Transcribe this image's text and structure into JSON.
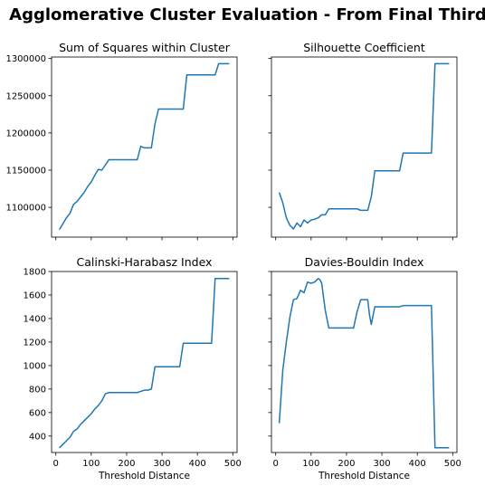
{
  "figure": {
    "suptitle": "Agglomerative Cluster Evaluation - From Final Third"
  },
  "chart_data": [
    {
      "type": "line",
      "title": "Sum of Squares within Cluster",
      "xlabel": "",
      "ylabel": "",
      "xlim": [
        -12,
        512
      ],
      "ylim": [
        1060000,
        1302000
      ],
      "xticks": [
        0,
        100,
        200,
        300,
        400,
        500
      ],
      "show_xticklabels": false,
      "yticks": [
        1100000,
        1150000,
        1200000,
        1250000,
        1300000
      ],
      "yticklabels": [
        "1100000",
        "1150000",
        "1200000",
        "1250000",
        "1300000"
      ],
      "x": [
        10,
        20,
        30,
        40,
        50,
        60,
        70,
        80,
        90,
        100,
        110,
        120,
        130,
        140,
        150,
        160,
        170,
        180,
        190,
        200,
        210,
        220,
        230,
        240,
        250,
        260,
        270,
        280,
        290,
        300,
        310,
        320,
        330,
        340,
        350,
        360,
        370,
        380,
        390,
        400,
        410,
        420,
        430,
        440,
        450,
        460,
        470,
        480,
        490
      ],
      "y": [
        1070000,
        1078000,
        1086000,
        1092000,
        1104000,
        1108000,
        1114000,
        1120000,
        1128000,
        1134000,
        1143000,
        1151000,
        1150000,
        1157000,
        1164000,
        1164000,
        1164000,
        1164000,
        1164000,
        1164000,
        1164000,
        1164000,
        1164000,
        1182000,
        1180000,
        1180000,
        1180000,
        1212000,
        1232000,
        1232000,
        1232000,
        1232000,
        1232000,
        1232000,
        1232000,
        1232000,
        1278000,
        1278000,
        1278000,
        1278000,
        1278000,
        1278000,
        1278000,
        1278000,
        1278000,
        1293000,
        1293000,
        1293000,
        1293000
      ]
    },
    {
      "type": "line",
      "title": "Silhouette Coefficient",
      "xlabel": "",
      "ylabel": "",
      "xlim": [
        -12,
        512
      ],
      "ylim": [
        1060000,
        1302000
      ],
      "xticks": [
        0,
        100,
        200,
        300,
        400,
        500
      ],
      "show_xticklabels": false,
      "yticks": [
        1100000,
        1150000,
        1200000,
        1250000,
        1300000
      ],
      "show_yticklabels": false,
      "x": [
        10,
        20,
        30,
        40,
        50,
        60,
        70,
        80,
        90,
        100,
        110,
        120,
        130,
        140,
        150,
        160,
        170,
        180,
        190,
        200,
        210,
        220,
        230,
        240,
        250,
        260,
        270,
        280,
        290,
        300,
        310,
        320,
        330,
        340,
        350,
        360,
        370,
        380,
        390,
        400,
        410,
        420,
        430,
        440,
        450,
        460,
        470,
        480,
        490
      ],
      "y": [
        1120000,
        1106000,
        1086000,
        1076000,
        1071000,
        1079000,
        1074000,
        1083000,
        1079000,
        1083000,
        1084000,
        1086000,
        1090000,
        1090000,
        1098000,
        1098000,
        1098000,
        1098000,
        1098000,
        1098000,
        1098000,
        1098000,
        1098000,
        1096000,
        1096000,
        1096000,
        1114000,
        1149000,
        1149000,
        1149000,
        1149000,
        1149000,
        1149000,
        1149000,
        1149000,
        1173000,
        1173000,
        1173000,
        1173000,
        1173000,
        1173000,
        1173000,
        1173000,
        1173000,
        1293000,
        1293000,
        1293000,
        1293000,
        1293000
      ]
    },
    {
      "type": "line",
      "title": "Calinski-Harabasz Index",
      "xlabel": "Threshold Distance",
      "ylabel": "",
      "xlim": [
        -12,
        512
      ],
      "ylim": [
        260,
        1800
      ],
      "xticks": [
        0,
        100,
        200,
        300,
        400,
        500
      ],
      "xticklabels": [
        "0",
        "100",
        "200",
        "300",
        "400",
        "500"
      ],
      "yticks": [
        400,
        600,
        800,
        1000,
        1200,
        1400,
        1600,
        1800
      ],
      "yticklabels": [
        "400",
        "600",
        "800",
        "1000",
        "1200",
        "1400",
        "1600",
        "1800"
      ],
      "x": [
        10,
        20,
        30,
        40,
        50,
        60,
        70,
        80,
        90,
        100,
        110,
        120,
        130,
        140,
        150,
        160,
        170,
        180,
        190,
        200,
        210,
        220,
        230,
        240,
        250,
        260,
        270,
        280,
        290,
        300,
        310,
        320,
        330,
        340,
        350,
        360,
        370,
        380,
        390,
        400,
        410,
        420,
        430,
        440,
        450,
        460,
        470,
        480,
        490
      ],
      "y": [
        300,
        330,
        360,
        390,
        440,
        460,
        500,
        530,
        560,
        590,
        630,
        660,
        700,
        760,
        770,
        770,
        770,
        770,
        770,
        770,
        770,
        770,
        770,
        780,
        790,
        790,
        800,
        990,
        990,
        990,
        990,
        990,
        990,
        990,
        990,
        1190,
        1190,
        1190,
        1190,
        1190,
        1190,
        1190,
        1190,
        1190,
        1740,
        1740,
        1740,
        1740,
        1740
      ]
    },
    {
      "type": "line",
      "title": "Davies-Bouldin Index",
      "xlabel": "Threshold Distance",
      "ylabel": "",
      "xlim": [
        -12,
        512
      ],
      "ylim": [
        260,
        1800
      ],
      "xticks": [
        0,
        100,
        200,
        300,
        400,
        500
      ],
      "xticklabels": [
        "0",
        "100",
        "200",
        "300",
        "400",
        "500"
      ],
      "yticks": [
        400,
        600,
        800,
        1000,
        1200,
        1400,
        1600,
        1800
      ],
      "show_yticklabels": false,
      "x": [
        10,
        20,
        30,
        40,
        50,
        60,
        70,
        80,
        90,
        100,
        110,
        120,
        125,
        130,
        140,
        150,
        160,
        170,
        180,
        190,
        200,
        210,
        220,
        230,
        240,
        250,
        260,
        265,
        270,
        280,
        290,
        300,
        310,
        320,
        330,
        340,
        350,
        360,
        370,
        380,
        390,
        400,
        410,
        420,
        430,
        440,
        450,
        460,
        470,
        480,
        490
      ],
      "y": [
        510,
        960,
        1200,
        1410,
        1560,
        1570,
        1640,
        1620,
        1710,
        1700,
        1710,
        1740,
        1730,
        1700,
        1470,
        1320,
        1320,
        1320,
        1320,
        1320,
        1320,
        1320,
        1320,
        1460,
        1560,
        1560,
        1560,
        1430,
        1350,
        1500,
        1500,
        1500,
        1500,
        1500,
        1500,
        1500,
        1500,
        1510,
        1510,
        1510,
        1510,
        1510,
        1510,
        1510,
        1510,
        1510,
        300,
        300,
        300,
        300,
        300
      ]
    }
  ]
}
